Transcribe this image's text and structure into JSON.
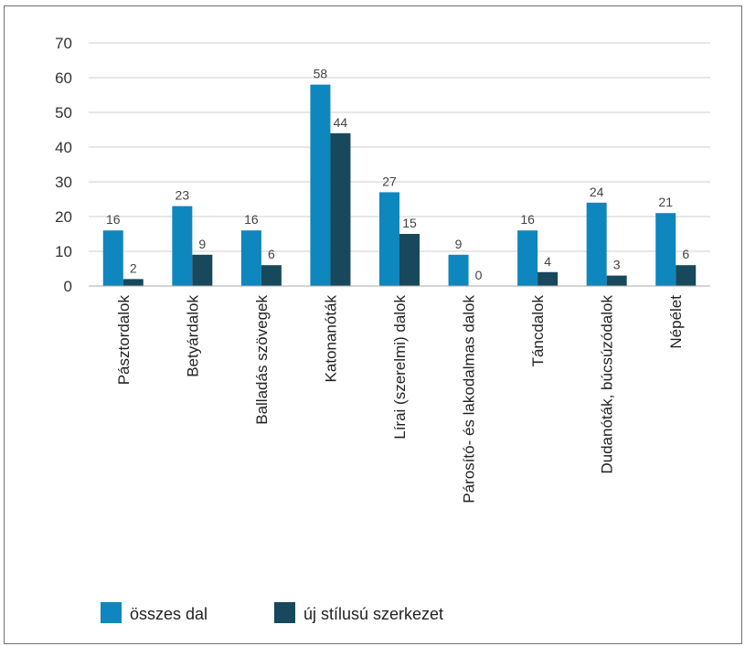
{
  "chart_data": {
    "type": "bar",
    "categories": [
      "Pásztordalok",
      "Betyárdalok",
      "Balladás szövegek",
      "Katonanóták",
      "Lírai (szerelmi) dalok",
      "Párosító- és lakodalmas dalok",
      "Táncdalok",
      "Dudanóták, búcsúzódalok",
      "Népélet"
    ],
    "series": [
      {
        "name": "összes dal",
        "values": [
          16,
          23,
          16,
          58,
          27,
          9,
          16,
          24,
          21
        ],
        "color": "#0e86be"
      },
      {
        "name": "új stílusú szerkezet",
        "values": [
          2,
          9,
          6,
          44,
          15,
          0,
          4,
          3,
          6
        ],
        "color": "#17485c"
      }
    ],
    "ylim": [
      0,
      70
    ],
    "yticks": [
      "0",
      "10",
      "20",
      "30",
      "40",
      "50",
      "60",
      "70"
    ],
    "grid": true,
    "legend_position": "bottom-left",
    "data_labels": true
  }
}
